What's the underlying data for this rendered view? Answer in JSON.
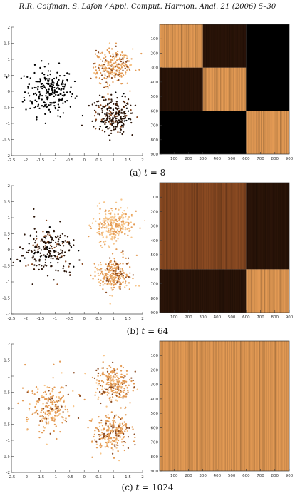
{
  "header": "R.R. Coifman, S. Lafon / Appl. Comput. Harmon. Anal. 21 (2006) 5–30",
  "scatter_axes": {
    "x_ticks": [
      "-2.5",
      "-2",
      "-1.5",
      "-1",
      "-0.5",
      "0",
      "0.5",
      "1",
      "1.5",
      "2"
    ],
    "y_ticks": [
      "2",
      "1.5",
      "1",
      "0.5",
      "0",
      "-0.5",
      "-1",
      "-1.5",
      "-2"
    ],
    "xlim": [
      -2.5,
      2
    ],
    "ylim": [
      -2,
      2
    ]
  },
  "matrix_axes": {
    "x_ticks": [
      "100",
      "200",
      "300",
      "400",
      "500",
      "600",
      "700",
      "800",
      "900"
    ],
    "y_ticks": [
      "100",
      "200",
      "300",
      "400",
      "500",
      "600",
      "700",
      "800",
      "900"
    ],
    "lim": [
      0,
      900
    ]
  },
  "colors": {
    "black": "#000000",
    "dark": "#2a1408",
    "mid": "#8a4a22",
    "orange": "#e39a54",
    "light": "#f7c58a"
  },
  "panels": [
    {
      "caption_prefix": "(a) ",
      "caption_var": "t",
      "caption_value": " = 8",
      "chart_data": {
        "type": "scatter",
        "clusters": [
          {
            "center": [
              -1.2,
              0.0
            ],
            "shade": "black"
          },
          {
            "center": [
              1.0,
              0.75
            ],
            "shade": "orange"
          },
          {
            "center": [
              1.0,
              -0.75
            ],
            "shade": "dark"
          }
        ],
        "matrix": {
          "type": "heatmap",
          "blocks": [
            {
              "range": [
                0,
                300,
                0,
                300
              ],
              "shade": "orange"
            },
            {
              "range": [
                300,
                600,
                300,
                600
              ],
              "shade": "orange"
            },
            {
              "range": [
                0,
                300,
                300,
                600
              ],
              "shade": "dark"
            },
            {
              "range": [
                300,
                600,
                0,
                300
              ],
              "shade": "dark"
            },
            {
              "range": [
                600,
                900,
                600,
                900
              ],
              "shade": "orange"
            },
            {
              "range": [
                0,
                600,
                600,
                900
              ],
              "shade": "black"
            },
            {
              "range": [
                600,
                900,
                0,
                600
              ],
              "shade": "black"
            }
          ]
        }
      }
    },
    {
      "caption_prefix": "(b) ",
      "caption_var": "t",
      "caption_value": " = 64",
      "chart_data": {
        "type": "scatter",
        "clusters": [
          {
            "center": [
              -1.2,
              0.0
            ],
            "shade": "dark"
          },
          {
            "center": [
              1.0,
              0.75
            ],
            "shade": "light"
          },
          {
            "center": [
              1.0,
              -0.75
            ],
            "shade": "orange"
          }
        ],
        "matrix": {
          "type": "heatmap",
          "blocks": [
            {
              "range": [
                0,
                600,
                0,
                600
              ],
              "shade": "mid"
            },
            {
              "range": [
                600,
                900,
                600,
                900
              ],
              "shade": "orange"
            },
            {
              "range": [
                0,
                600,
                600,
                900
              ],
              "shade": "dark"
            },
            {
              "range": [
                600,
                900,
                0,
                600
              ],
              "shade": "dark"
            }
          ]
        }
      }
    },
    {
      "caption_prefix": "(c) ",
      "caption_var": "t",
      "caption_value": " = 1024",
      "chart_data": {
        "type": "scatter",
        "clusters": [
          {
            "center": [
              -1.2,
              0.0
            ],
            "shade": "orange"
          },
          {
            "center": [
              1.0,
              0.75
            ],
            "shade": "orange"
          },
          {
            "center": [
              1.0,
              -0.75
            ],
            "shade": "orange"
          }
        ],
        "matrix": {
          "type": "heatmap",
          "blocks": [
            {
              "range": [
                0,
                900,
                0,
                900
              ],
              "shade": "orange"
            }
          ]
        }
      }
    }
  ]
}
